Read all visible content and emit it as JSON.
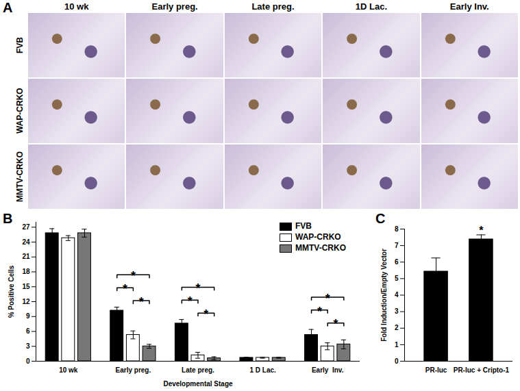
{
  "image_grid": {
    "title": "A",
    "columns": [
      "10 wk",
      "Early preg.",
      "Late preg.",
      "1D Lac.",
      "Early Inv."
    ],
    "rows": [
      "FVB",
      "WAP-CRKO",
      "MMTV-CRKO"
    ]
  },
  "chart_data": [
    {
      "type": "bar",
      "title": "B",
      "x_label": "Developmental Stage",
      "y_label": "% Positive Cells",
      "categories": [
        "10 wk",
        "Early preg.",
        "Late preg.",
        "1 D Lac.",
        "Early  Inv."
      ],
      "series": [
        {
          "name": "FVB",
          "color": "#000000",
          "values": [
            25.8,
            10.2,
            7.6,
            0.7,
            5.3
          ],
          "errors": [
            0.9,
            0.7,
            0.8,
            0.1,
            1.1
          ]
        },
        {
          "name": "WAP-CRKO",
          "color": "#ffffff",
          "values": [
            24.8,
            5.3,
            1.2,
            0.7,
            3.0
          ],
          "errors": [
            0.5,
            0.8,
            0.6,
            0.1,
            0.7
          ]
        },
        {
          "name": "MMTV-CRKO",
          "color": "#777777",
          "values": [
            25.8,
            3.0,
            0.6,
            0.7,
            3.4
          ],
          "errors": [
            0.8,
            0.4,
            0.3,
            0.1,
            0.9
          ]
        }
      ],
      "ylim": [
        0,
        28
      ],
      "yticks": [
        0,
        3,
        6,
        9,
        12,
        15,
        18,
        21,
        24,
        27
      ],
      "legend": "top-right",
      "significance": [
        {
          "category": "Early preg.",
          "pair": [
            "WAP-CRKO",
            "MMTV-CRKO"
          ],
          "label": "*"
        },
        {
          "category": "Early preg.",
          "pair": [
            "FVB",
            "WAP-CRKO"
          ],
          "label": "*"
        },
        {
          "category": "Early preg.",
          "pair": [
            "FVB",
            "MMTV-CRKO"
          ],
          "label": "*"
        },
        {
          "category": "Late preg.",
          "pair": [
            "WAP-CRKO",
            "MMTV-CRKO"
          ],
          "label": "*"
        },
        {
          "category": "Late preg.",
          "pair": [
            "FVB",
            "WAP-CRKO"
          ],
          "label": "*"
        },
        {
          "category": "Late preg.",
          "pair": [
            "FVB",
            "MMTV-CRKO"
          ],
          "label": "*"
        },
        {
          "category": "Early  Inv.",
          "pair": [
            "WAP-CRKO",
            "MMTV-CRKO"
          ],
          "label": "*"
        },
        {
          "category": "Early  Inv.",
          "pair": [
            "FVB",
            "WAP-CRKO"
          ],
          "label": "*"
        },
        {
          "category": "Early  Inv.",
          "pair": [
            "FVB",
            "MMTV-CRKO"
          ],
          "label": "*"
        }
      ]
    },
    {
      "type": "bar",
      "title": "C",
      "y_label": "Fold Induction/Empty Vector",
      "categories": [
        "PR-luc",
        "PR-luc + Cripto-1"
      ],
      "values": [
        5.45,
        7.4
      ],
      "errors": [
        0.8,
        0.25
      ],
      "color": "#000000",
      "ylim": [
        0,
        8
      ],
      "yticks": [
        0,
        1,
        2,
        3,
        4,
        5,
        6,
        7,
        8
      ],
      "significance": [
        {
          "category": "PR-luc + Cripto-1",
          "label": "*"
        }
      ]
    }
  ]
}
